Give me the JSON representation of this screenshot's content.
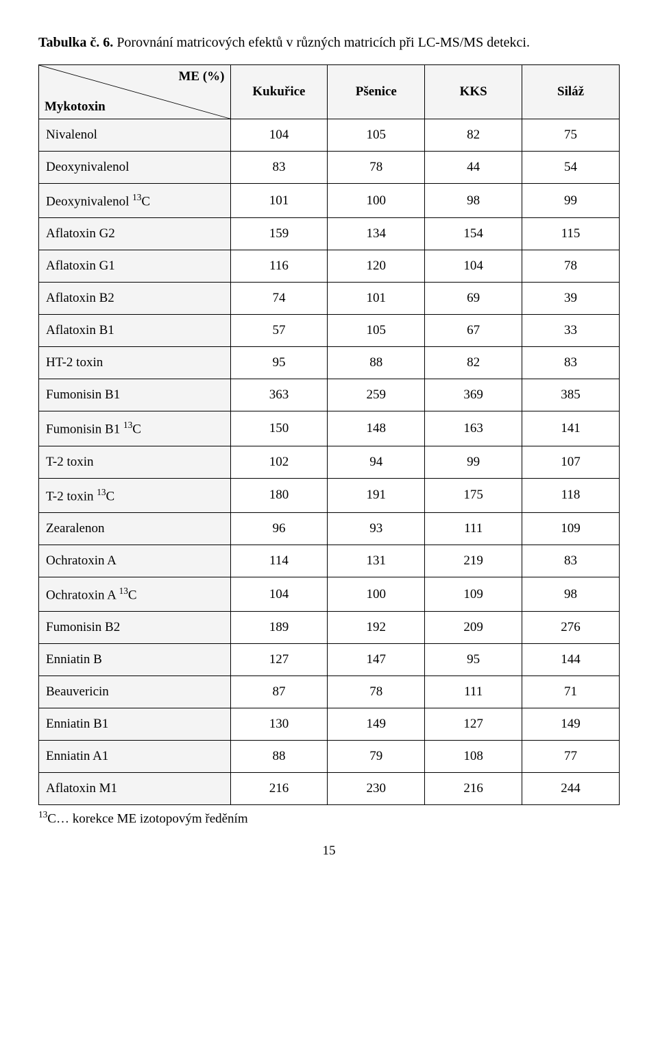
{
  "title_bold": "Tabulka č. 6.",
  "title_rest": " Porovnání matricových efektů v různých matricích při LC-MS/MS detekci.",
  "corner_bottom": "Mykotoxin",
  "corner_top": "ME (%)",
  "columns": [
    "Kukuřice",
    "Pšenice",
    "KKS",
    "Siláž"
  ],
  "rows": [
    {
      "label_html": "Nivalenol",
      "v": [
        "104",
        "105",
        "82",
        "75"
      ]
    },
    {
      "label_html": "Deoxynivalenol",
      "v": [
        "83",
        "78",
        "44",
        "54"
      ]
    },
    {
      "label_html": "Deoxynivalenol <sup>13</sup>C",
      "v": [
        "101",
        "100",
        "98",
        "99"
      ]
    },
    {
      "label_html": "Aflatoxin G2",
      "v": [
        "159",
        "134",
        "154",
        "115"
      ]
    },
    {
      "label_html": "Aflatoxin G1",
      "v": [
        "116",
        "120",
        "104",
        "78"
      ]
    },
    {
      "label_html": "Aflatoxin B2",
      "v": [
        "74",
        "101",
        "69",
        "39"
      ]
    },
    {
      "label_html": "Aflatoxin B1",
      "v": [
        "57",
        "105",
        "67",
        "33"
      ]
    },
    {
      "label_html": "HT-2 toxin",
      "v": [
        "95",
        "88",
        "82",
        "83"
      ]
    },
    {
      "label_html": "Fumonisin B1",
      "v": [
        "363",
        "259",
        "369",
        "385"
      ]
    },
    {
      "label_html": "Fumonisin B1 <sup>13</sup>C",
      "v": [
        "150",
        "148",
        "163",
        "141"
      ]
    },
    {
      "label_html": "T-2 toxin",
      "v": [
        "102",
        "94",
        "99",
        "107"
      ]
    },
    {
      "label_html": "T-2 toxin <sup>13</sup>C",
      "v": [
        "180",
        "191",
        "175",
        "118"
      ]
    },
    {
      "label_html": "Zearalenon",
      "v": [
        "96",
        "93",
        "111",
        "109"
      ]
    },
    {
      "label_html": "Ochratoxin A",
      "v": [
        "114",
        "131",
        "219",
        "83"
      ]
    },
    {
      "label_html": "Ochratoxin A <sup>13</sup>C",
      "v": [
        "104",
        "100",
        "109",
        "98"
      ]
    },
    {
      "label_html": "Fumonisin B2",
      "v": [
        "189",
        "192",
        "209",
        "276"
      ]
    },
    {
      "label_html": "Enniatin B",
      "v": [
        "127",
        "147",
        "95",
        "144"
      ]
    },
    {
      "label_html": "Beauvericin",
      "v": [
        "87",
        "78",
        "111",
        "71"
      ]
    },
    {
      "label_html": "Enniatin B1",
      "v": [
        "130",
        "149",
        "127",
        "149"
      ]
    },
    {
      "label_html": "Enniatin A1",
      "v": [
        "88",
        "79",
        "108",
        "77"
      ]
    },
    {
      "label_html": "Aflatoxin M1",
      "v": [
        "216",
        "230",
        "216",
        "244"
      ]
    }
  ],
  "footnote_html": "<sup>13</sup>C… korekce ME izotopovým ředěním",
  "page_number": "15",
  "style": {
    "header_bg": "#f4f4f4",
    "border_color": "#000000",
    "font_family": "Times New Roman"
  }
}
